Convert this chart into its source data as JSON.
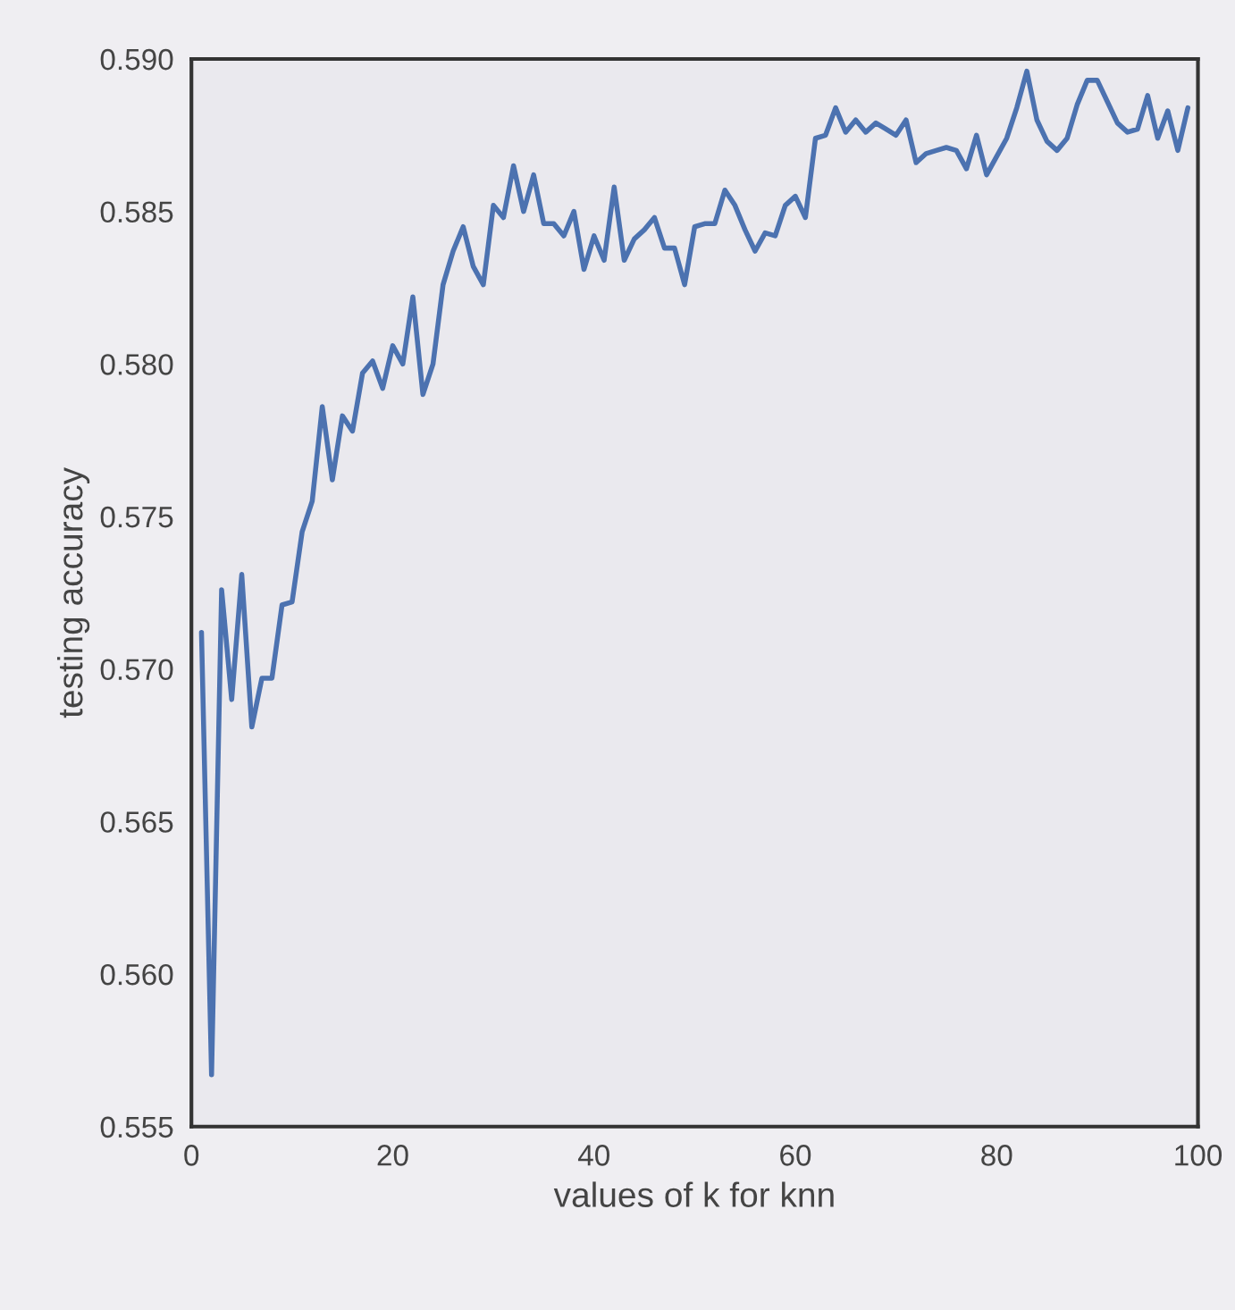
{
  "chart_data": {
    "type": "line",
    "xlabel": "values of k for knn",
    "ylabel": "testing accuracy",
    "x": [
      1,
      2,
      3,
      4,
      5,
      6,
      7,
      8,
      9,
      10,
      11,
      12,
      13,
      14,
      15,
      16,
      17,
      18,
      19,
      20,
      21,
      22,
      23,
      24,
      25,
      26,
      27,
      28,
      29,
      30,
      31,
      32,
      33,
      34,
      35,
      36,
      37,
      38,
      39,
      40,
      41,
      42,
      43,
      44,
      45,
      46,
      47,
      48,
      49,
      50,
      51,
      52,
      53,
      54,
      55,
      56,
      57,
      58,
      59,
      60,
      61,
      62,
      63,
      64,
      65,
      66,
      67,
      68,
      69,
      70,
      71,
      72,
      73,
      74,
      75,
      76,
      77,
      78,
      79,
      80,
      81,
      82,
      83,
      84,
      85,
      86,
      87,
      88,
      89,
      90,
      91,
      92,
      93,
      94,
      95,
      96,
      97,
      98,
      99
    ],
    "series": [
      {
        "color": "#4c72b0",
        "values": [
          0.5712,
          0.5567,
          0.5726,
          0.569,
          0.5731,
          0.5681,
          0.5697,
          0.5697,
          0.5721,
          0.5722,
          0.5745,
          0.5755,
          0.5786,
          0.5762,
          0.5783,
          0.5778,
          0.5797,
          0.5801,
          0.5792,
          0.5806,
          0.58,
          0.5822,
          0.579,
          0.58,
          0.5826,
          0.5837,
          0.5845,
          0.5832,
          0.5826,
          0.5852,
          0.5848,
          0.5865,
          0.585,
          0.5862,
          0.5846,
          0.5846,
          0.5842,
          0.585,
          0.5831,
          0.5842,
          0.5834,
          0.5858,
          0.5834,
          0.5841,
          0.5844,
          0.5848,
          0.5838,
          0.5838,
          0.5826,
          0.5845,
          0.5846,
          0.5846,
          0.5857,
          0.5852,
          0.5844,
          0.5837,
          0.5843,
          0.5842,
          0.5852,
          0.5855,
          0.5848,
          0.5874,
          0.5875,
          0.5884,
          0.5876,
          0.588,
          0.5876,
          0.5879,
          0.5877,
          0.5875,
          0.588,
          0.5866,
          0.5869,
          0.587,
          0.5871,
          0.587,
          0.5864,
          0.5875,
          0.5862,
          0.5868,
          0.5874,
          0.5884,
          0.5896,
          0.588,
          0.5873,
          0.587,
          0.5874,
          0.5885,
          0.5893,
          0.5893,
          0.5886,
          0.5879,
          0.5876,
          0.5877,
          0.5888,
          0.5874,
          0.5883,
          0.587,
          0.5884
        ]
      }
    ],
    "xlim": [
      0,
      100
    ],
    "ylim": [
      0.555,
      0.59
    ],
    "xticks": [
      0,
      20,
      40,
      60,
      80,
      100
    ],
    "yticks": [
      {
        "value": 0.555,
        "label": "0.555"
      },
      {
        "value": 0.56,
        "label": "0.560"
      },
      {
        "value": 0.565,
        "label": "0.565"
      },
      {
        "value": 0.57,
        "label": "0.570"
      },
      {
        "value": 0.575,
        "label": "0.575"
      },
      {
        "value": 0.58,
        "label": "0.580"
      },
      {
        "value": 0.585,
        "label": "0.585"
      },
      {
        "value": 0.59,
        "label": "0.590"
      }
    ],
    "grid": false,
    "legend": false
  }
}
